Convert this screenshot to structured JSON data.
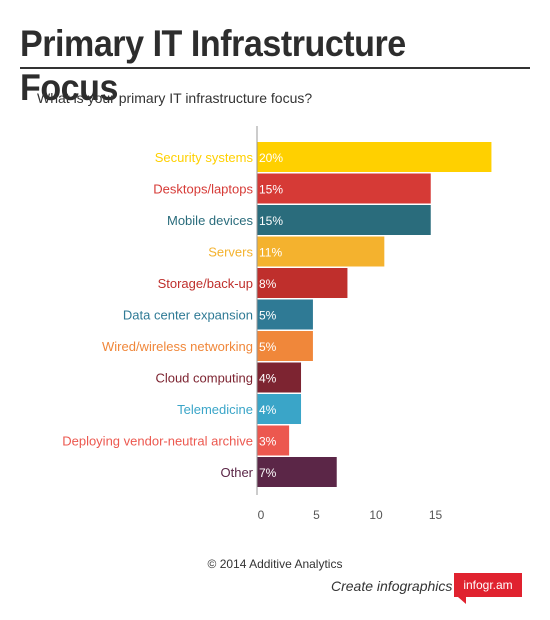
{
  "title": "Primary IT Infrastructure Focus",
  "chart_data": {
    "type": "bar",
    "orientation": "horizontal",
    "subtitle": "What is your primary IT infrastructure focus?",
    "categories": [
      "Security systems",
      "Desktops/laptops",
      "Mobile devices",
      "Servers",
      "Storage/back-up",
      "Data center expansion",
      "Wired/wireless networking",
      "Cloud computing",
      "Telemedicine",
      "Deploying vendor-neutral archive",
      "Other"
    ],
    "values": [
      20,
      15,
      15,
      11,
      8,
      5,
      5,
      4,
      4,
      3,
      7
    ],
    "plotted_values": [
      19.7,
      14.6,
      14.6,
      10.7,
      7.6,
      4.7,
      4.7,
      3.7,
      3.7,
      2.7,
      6.7
    ],
    "value_labels": [
      "20%",
      "15%",
      "15%",
      "11%",
      "8%",
      "5%",
      "5%",
      "4%",
      "4%",
      "3%",
      "7%"
    ],
    "colors": [
      "#ffd000",
      "#d63a36",
      "#2a6c7c",
      "#f4b22e",
      "#bf2f2c",
      "#2f7a95",
      "#f0873a",
      "#7d2431",
      "#3aa5c8",
      "#ec584f",
      "#5b2647"
    ],
    "xlim": [
      0,
      20
    ],
    "x_ticks": [
      "0",
      "5",
      "10",
      "15"
    ],
    "grid": false,
    "legend": "none"
  },
  "footer": {
    "copyright": "© 2014 Additive Analytics",
    "cta": "Create infographics",
    "badge": "infogr.am"
  }
}
